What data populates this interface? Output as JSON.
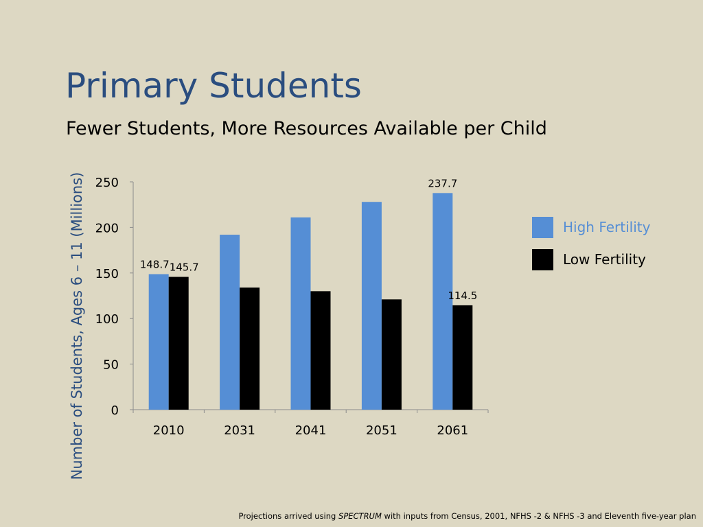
{
  "slide": {
    "title": "Primary Students",
    "subtitle": "Fewer Students, More Resources Available per Child",
    "footnote_pre": "Projections arrived using ",
    "footnote_em": "SPECTRUM",
    "footnote_post": " with inputs from Census, 2001, NFHS -2 & NFHS -3 and Eleventh five-year plan"
  },
  "chart_data": {
    "type": "bar",
    "title": "",
    "xlabel": "",
    "ylabel": "Number of Students, Ages 6 – 11 (Millions)",
    "ylim": [
      0,
      250
    ],
    "yticks": [
      0,
      50,
      100,
      150,
      200,
      250
    ],
    "categories": [
      "2010",
      "2031",
      "2041",
      "2051",
      "2061"
    ],
    "series": [
      {
        "name": "High Fertility",
        "color": "#558ed5",
        "values": [
          148.7,
          192,
          211,
          228,
          237.7
        ]
      },
      {
        "name": "Low Fertility",
        "color": "#000000",
        "values": [
          145.7,
          134,
          130,
          121,
          114.5
        ]
      }
    ],
    "data_labels": [
      {
        "series": 0,
        "index": 0,
        "text": "148.7"
      },
      {
        "series": 1,
        "index": 0,
        "text": "145.7"
      },
      {
        "series": 0,
        "index": 4,
        "text": "237.7"
      },
      {
        "series": 1,
        "index": 4,
        "text": "114.5"
      }
    ],
    "grid": false,
    "legend": "right"
  }
}
